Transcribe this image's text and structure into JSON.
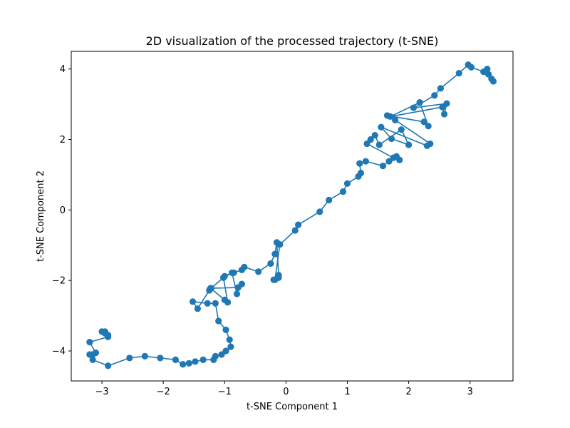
{
  "chart_data": {
    "type": "line",
    "title": "2D visualization of the processed trajectory (t-SNE)",
    "xlabel": "t-SNE Component 1",
    "ylabel": "t-SNE Component 2",
    "xlim": [
      -3.5,
      3.7
    ],
    "ylim": [
      -4.85,
      4.5
    ],
    "xticks": [
      -3,
      -2,
      -1,
      0,
      1,
      2,
      3
    ],
    "yticks": [
      -4,
      -2,
      0,
      2,
      4
    ],
    "xtick_labels": [
      "−3",
      "−2",
      "−1",
      "0",
      "1",
      "2",
      "3"
    ],
    "ytick_labels": [
      "−4",
      "−2",
      "0",
      "2",
      "4"
    ],
    "grid": false,
    "marker": "circle",
    "color": "#1f77b4",
    "series": [
      {
        "x": [
          -2.9,
          -2.95,
          -3.0,
          -2.95,
          -2.9,
          -3.2,
          -3.1,
          -3.15,
          -3.2,
          -3.15,
          -2.9,
          -2.55,
          -2.3,
          -2.05,
          -1.8,
          -1.68,
          -1.58,
          -1.48,
          -1.35,
          -1.18,
          -1.15,
          -1.05,
          -0.98,
          -0.9,
          -0.92,
          -0.98,
          -1.1,
          -1.15,
          -1.28,
          -1.52,
          -1.44,
          -1.25,
          -1.23,
          -1.0,
          -0.95,
          -1.02,
          -1.24,
          -1.22,
          -0.78,
          -0.72,
          -0.8,
          -0.88,
          -1.0,
          -0.85,
          -0.72,
          -0.68,
          -0.45,
          -0.25,
          -0.18,
          -0.15,
          -0.12,
          -0.2,
          -0.12,
          -0.18,
          -0.1,
          0.15,
          0.2,
          0.55,
          0.7,
          0.93,
          1.0,
          1.18,
          1.22,
          1.2,
          1.3,
          1.58,
          1.68,
          1.8,
          1.85,
          1.75,
          1.32,
          1.38,
          1.45,
          1.52,
          1.88,
          2.0,
          1.72,
          1.55,
          2.3,
          2.35,
          1.78,
          1.65,
          2.25,
          2.32,
          2.18,
          1.7,
          2.55,
          2.58,
          2.62,
          2.08,
          2.42,
          2.52,
          2.82,
          2.97,
          3.02,
          3.22,
          3.28,
          3.3,
          3.35,
          3.38
        ],
        "y": [
          -3.55,
          -3.45,
          -3.45,
          -3.5,
          -3.6,
          -3.75,
          -4.05,
          -4.1,
          -4.1,
          -4.25,
          -4.42,
          -4.2,
          -4.15,
          -4.2,
          -4.25,
          -4.38,
          -4.35,
          -4.3,
          -4.25,
          -4.25,
          -4.15,
          -4.1,
          -4.0,
          -3.88,
          -3.68,
          -3.4,
          -3.15,
          -2.65,
          -2.65,
          -2.6,
          -2.8,
          -2.28,
          -2.22,
          -2.55,
          -2.62,
          -1.92,
          -2.25,
          -2.22,
          -2.2,
          -2.1,
          -2.38,
          -1.78,
          -1.88,
          -1.78,
          -1.7,
          -1.62,
          -1.75,
          -1.52,
          -1.25,
          -0.92,
          -1.85,
          -1.98,
          -1.92,
          -1.98,
          -0.98,
          -0.58,
          -0.42,
          -0.05,
          0.28,
          0.52,
          0.75,
          0.95,
          1.05,
          1.32,
          1.38,
          1.25,
          1.38,
          1.52,
          1.42,
          1.48,
          1.88,
          2.0,
          2.12,
          1.85,
          2.28,
          1.85,
          2.02,
          2.35,
          1.82,
          1.88,
          2.55,
          2.68,
          2.5,
          2.38,
          3.05,
          2.65,
          2.92,
          2.72,
          3.02,
          2.9,
          3.25,
          3.45,
          3.88,
          4.12,
          4.05,
          3.92,
          4.0,
          3.85,
          3.72,
          3.65
        ]
      }
    ]
  }
}
